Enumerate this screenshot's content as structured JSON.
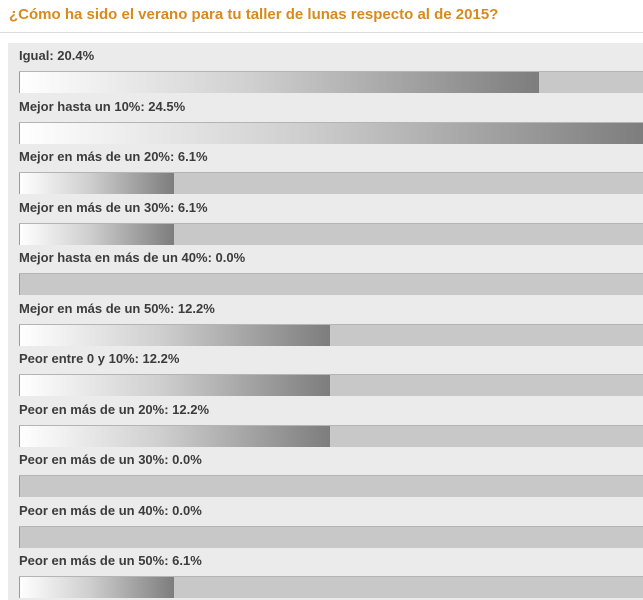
{
  "poll": {
    "question": "¿Cómo ha sido el verano para tu taller de lunas respecto al de 2015?",
    "max_percent": 24.5,
    "colors": {
      "title": "#d98a1c",
      "panel_background": "#ebebeb",
      "track": "#c8c8c8",
      "fill_gradient_start": "#ffffff",
      "fill_gradient_end": "#7d7d7d",
      "label_text": "#3c3c3c"
    },
    "options": [
      {
        "label": "Igual: 20.4%",
        "percent": 20.4
      },
      {
        "label": "Mejor hasta un 10%: 24.5%",
        "percent": 24.5
      },
      {
        "label": "Mejor en más de un 20%: 6.1%",
        "percent": 6.1
      },
      {
        "label": "Mejor en más de un 30%: 6.1%",
        "percent": 6.1
      },
      {
        "label": "Mejor hasta en más de un 40%: 0.0%",
        "percent": 0.0
      },
      {
        "label": "Mejor en más de un 50%: 12.2%",
        "percent": 12.2
      },
      {
        "label": "Peor entre 0 y 10%: 12.2%",
        "percent": 12.2
      },
      {
        "label": "Peor en más de un 20%: 12.2%",
        "percent": 12.2
      },
      {
        "label": "Peor en más de un 30%: 0.0%",
        "percent": 0.0
      },
      {
        "label": "Peor en más de un 40%: 0.0%",
        "percent": 0.0
      },
      {
        "label": "Peor en más de un 50%: 6.1%",
        "percent": 6.1
      }
    ]
  }
}
